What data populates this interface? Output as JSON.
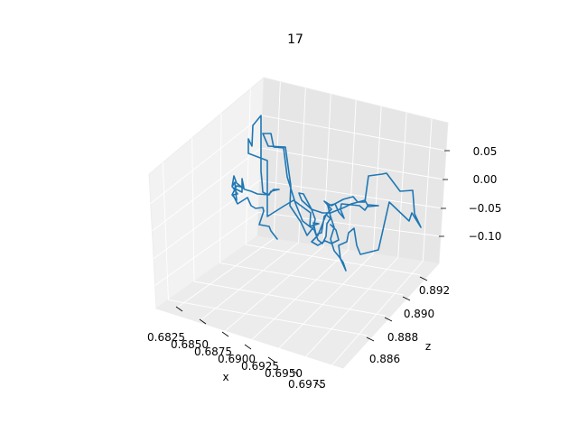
{
  "chart_data": {
    "type": "line",
    "projection": "3d",
    "title": "17",
    "xlabel": "x",
    "ylabel": "",
    "zlabel": "z",
    "grid": true,
    "line_color": "#1f77b4",
    "x_ticks": [
      "0.6825",
      "0.6850",
      "0.6875",
      "0.6900",
      "0.6925",
      "0.6950",
      "0.6975"
    ],
    "z_ticks": [
      "0.886",
      "0.888",
      "0.890",
      "0.892"
    ],
    "vertical_ticks": [
      "0.05",
      "0.00",
      "−0.05",
      "−0.10"
    ]
  }
}
